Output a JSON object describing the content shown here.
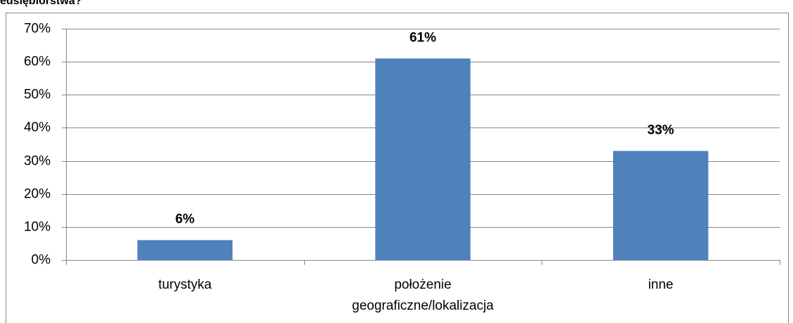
{
  "chart_data": {
    "type": "bar",
    "title": "edsiębiorstwa?",
    "categories": [
      "turystyka",
      "położenie geograficzne/lokalizacja",
      "inne"
    ],
    "values": [
      6,
      61,
      33
    ],
    "value_labels": [
      "6%",
      "61%",
      "33%"
    ],
    "color": "#4f81bd",
    "ylim": [
      0,
      70
    ],
    "yticks": [
      {
        "value": 0,
        "label": "0%"
      },
      {
        "value": 10,
        "label": "10%"
      },
      {
        "value": 20,
        "label": "20%"
      },
      {
        "value": 30,
        "label": "30%"
      },
      {
        "value": 40,
        "label": "40%"
      },
      {
        "value": 50,
        "label": "50%"
      },
      {
        "value": 60,
        "label": "60%"
      },
      {
        "value": 70,
        "label": "70%"
      }
    ],
    "grid": true
  }
}
